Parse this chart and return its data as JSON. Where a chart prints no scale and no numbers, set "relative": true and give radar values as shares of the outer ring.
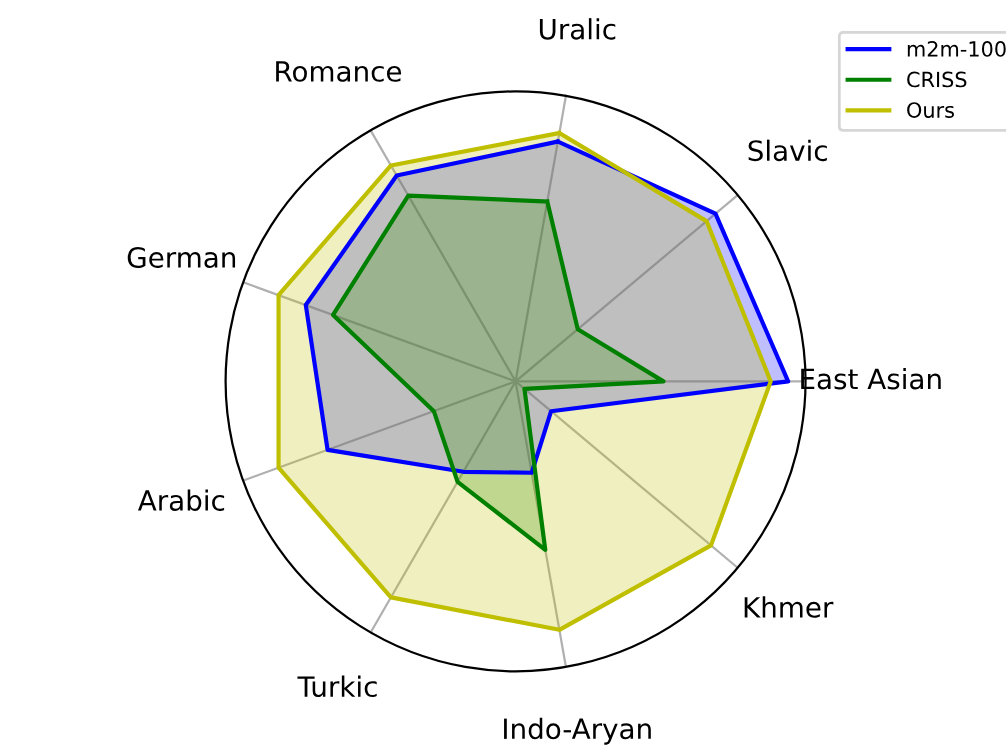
{
  "chart_data": {
    "type": "radar",
    "relative": true,
    "legend": "top right",
    "grid": true,
    "categories": [
      "Uralic",
      "Slavic",
      "East Asian",
      "Khmer",
      "Indo-Aryan",
      "Turkic",
      "Arabic",
      "German",
      "Romance"
    ],
    "series": [
      {
        "name": "m2m-100",
        "color": "#0000ff",
        "values": [
          0.84,
          0.9,
          0.94,
          0.16,
          0.32,
          0.36,
          0.69,
          0.77,
          0.82
        ]
      },
      {
        "name": "CRISS",
        "color": "#008000",
        "values": [
          0.63,
          0.28,
          0.51,
          0.04,
          0.59,
          0.4,
          0.3,
          0.67,
          0.74
        ]
      },
      {
        "name": "Ours",
        "color": "#bfbf00",
        "values": [
          0.87,
          0.86,
          0.88,
          0.88,
          0.87,
          0.86,
          0.87,
          0.87,
          0.86
        ]
      }
    ]
  }
}
